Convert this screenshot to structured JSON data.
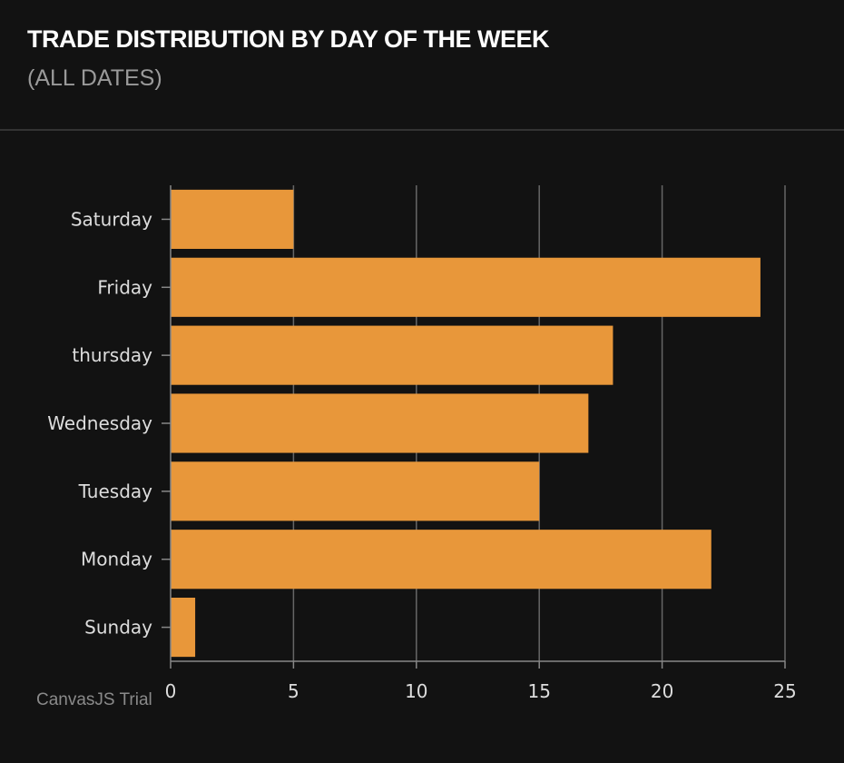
{
  "header": {
    "title": "TRADE DISTRIBUTION BY DAY OF THE WEEK",
    "subtitle": "(ALL DATES)"
  },
  "watermark": "CanvasJS Trial",
  "chart_data": {
    "type": "bar",
    "orientation": "horizontal",
    "title": "TRADE DISTRIBUTION BY DAY OF THE WEEK",
    "subtitle": "(ALL DATES)",
    "categories": [
      "Sunday",
      "Monday",
      "Tuesday",
      "Wednesday",
      "thursday",
      "Friday",
      "Saturday"
    ],
    "values": [
      1,
      22,
      15,
      17,
      18,
      24,
      5
    ],
    "xlim": [
      0,
      25
    ],
    "xticks": [
      0,
      5,
      10,
      15,
      20,
      25
    ],
    "grid": true,
    "bar_color": "#E8973A",
    "background": "#121212"
  }
}
